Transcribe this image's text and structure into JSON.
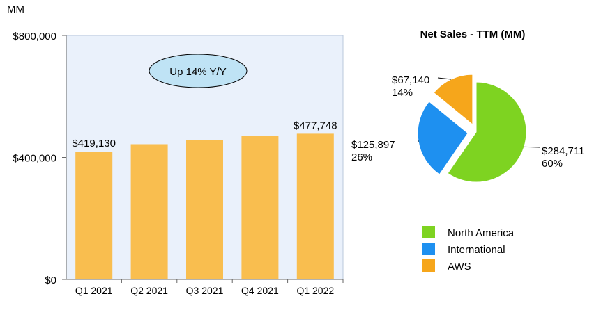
{
  "chart_data": [
    {
      "type": "bar",
      "unit_label": "MM",
      "categories": [
        "Q1 2021",
        "Q2 2021",
        "Q3 2021",
        "Q4 2021",
        "Q1 2022"
      ],
      "values": [
        419130,
        443298,
        457965,
        469822,
        477748
      ],
      "data_labels": [
        "$419,130",
        "",
        "",
        "",
        "$477,748"
      ],
      "ylim": [
        0,
        800000
      ],
      "yticks": [
        0,
        400000,
        800000
      ],
      "ytick_labels": [
        "$0",
        "$400,000",
        "$800,000"
      ],
      "annotation": "Up 14% Y/Y",
      "bar_color": "#F9BE4F",
      "plot_bg": "#EAF1FB",
      "annotation_fill": "#BFE3F5"
    },
    {
      "type": "pie",
      "title": "Net Sales - TTM (MM)",
      "slices": [
        {
          "name": "North America",
          "value": 284711,
          "value_label": "$284,711",
          "pct_label": "60%",
          "color": "#7ED321",
          "exploded": false
        },
        {
          "name": "International",
          "value": 125897,
          "value_label": "$125,897",
          "pct_label": "26%",
          "color": "#1E90F0",
          "exploded": true
        },
        {
          "name": "AWS",
          "value": 67140,
          "value_label": "$67,140",
          "pct_label": "14%",
          "color": "#F6A61B",
          "exploded": true
        }
      ],
      "legend_placement": "bottom"
    }
  ]
}
